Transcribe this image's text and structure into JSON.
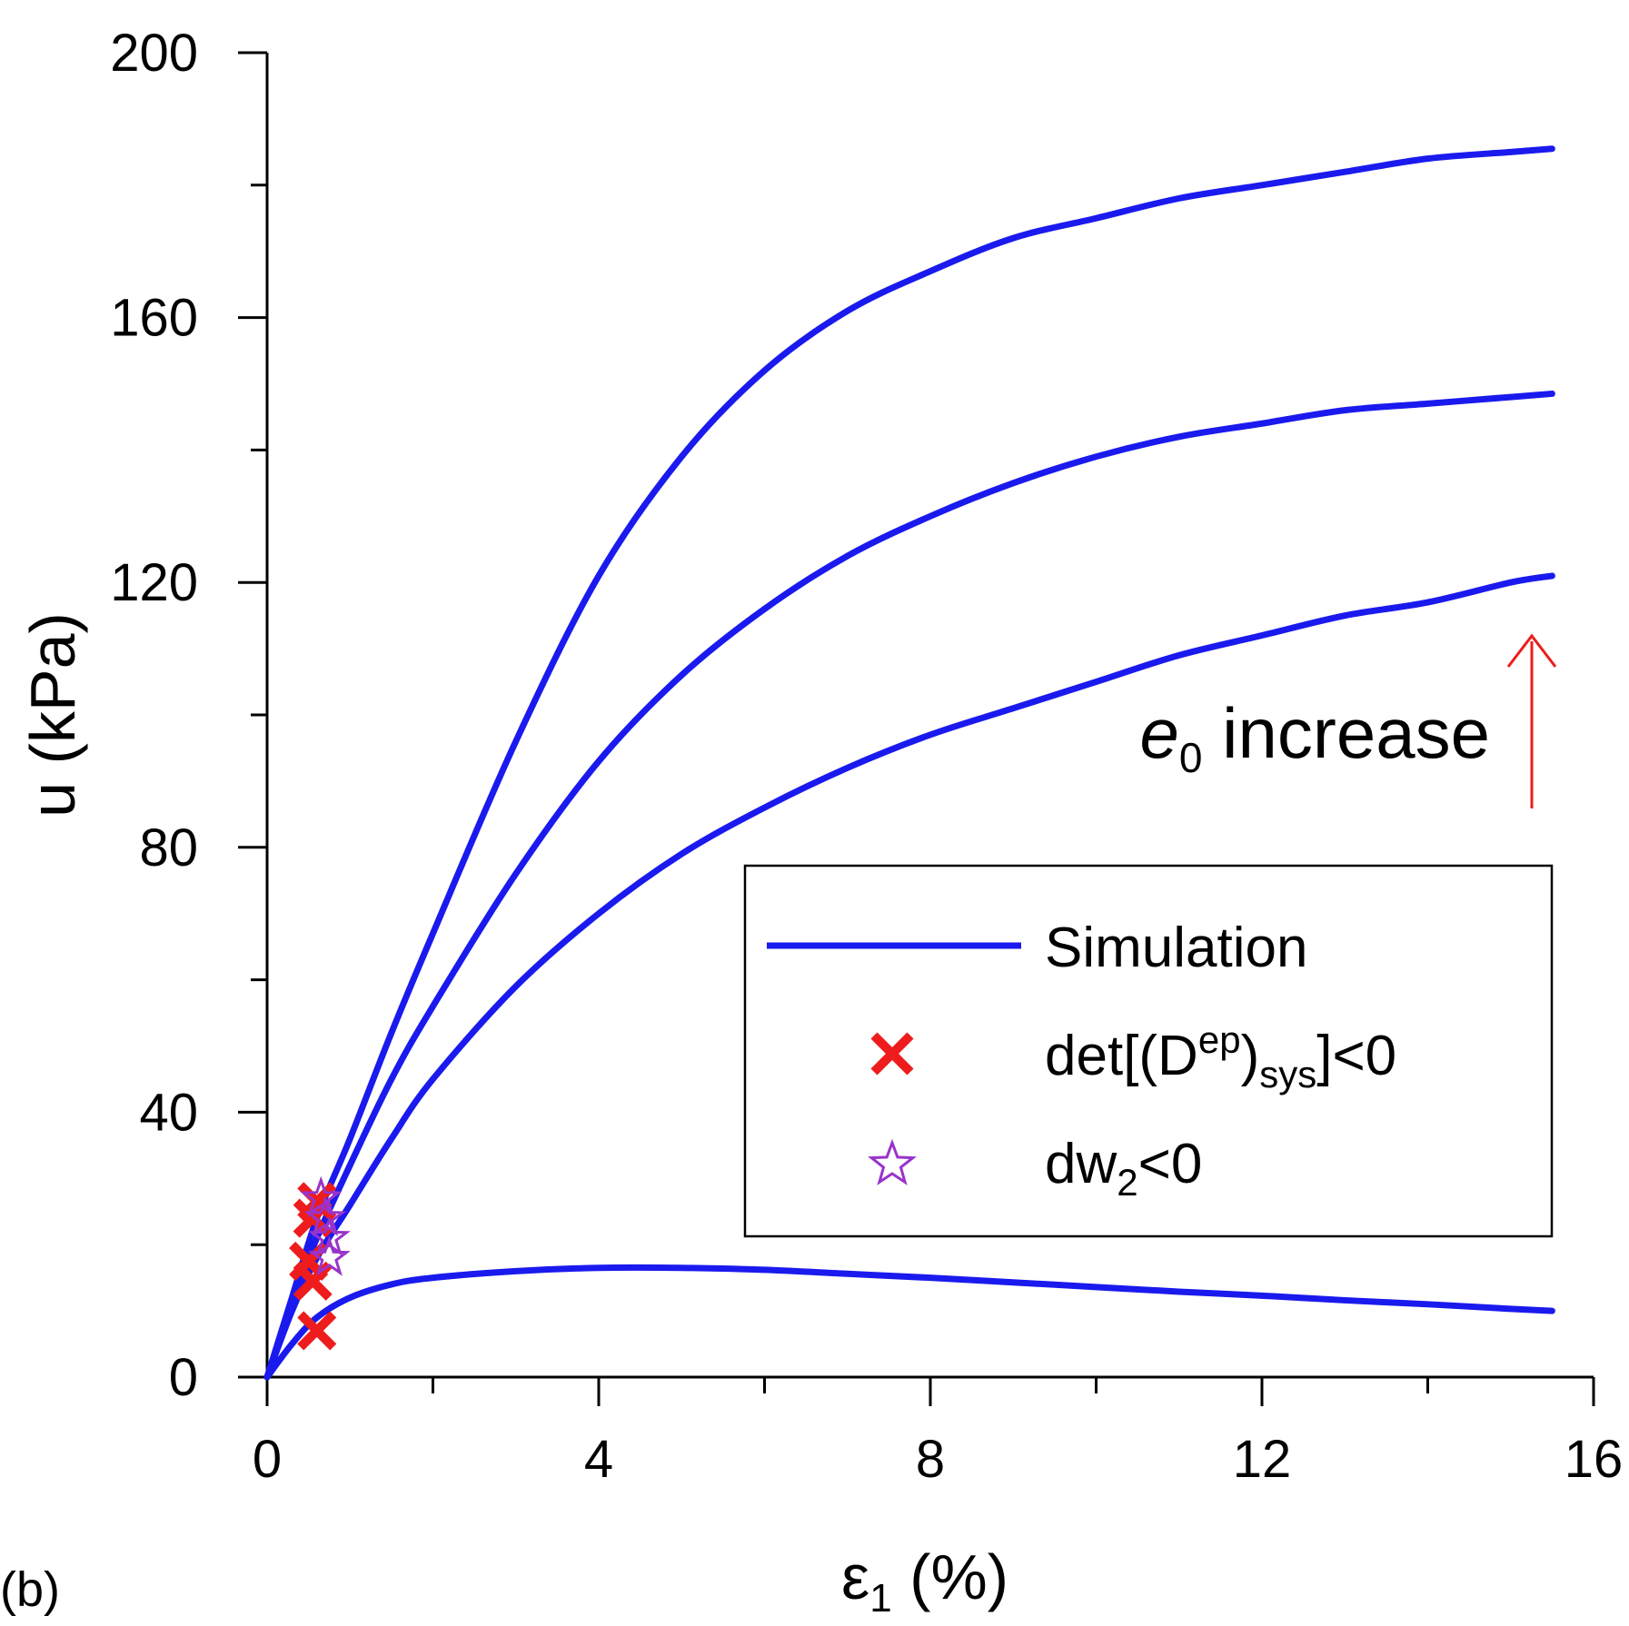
{
  "chart_data": {
    "type": "line",
    "panel_label": "(b)",
    "xlabel": {
      "main": "ε",
      "sub": "1",
      "rest": " (%)"
    },
    "ylabel": "u (kPa)",
    "xlim": [
      0,
      16
    ],
    "ylim": [
      0,
      200
    ],
    "xticks": [
      0,
      4,
      8,
      12,
      16
    ],
    "yticks": [
      0,
      40,
      80,
      120,
      160,
      200
    ],
    "xminor": [
      2,
      6,
      10,
      14
    ],
    "yminor": [
      20,
      60,
      100,
      140,
      180
    ],
    "colors": {
      "line": "#1a1aee",
      "cross": "#ee1c1c",
      "star": "#9933cc",
      "arrow": "#ee1c1c"
    },
    "series": [
      {
        "x": [
          0,
          0.3,
          0.6,
          1,
          1.5,
          2,
          3,
          4,
          5,
          6,
          7,
          8,
          9,
          10,
          11,
          12,
          13,
          14,
          15,
          15.5
        ],
        "y": [
          0,
          10,
          18,
          26,
          36,
          45,
          59,
          70,
          79,
          86,
          92,
          97,
          101,
          105,
          109,
          112,
          115,
          117,
          120,
          121
        ]
      },
      {
        "x": [
          0,
          0.3,
          0.6,
          1,
          1.5,
          2,
          3,
          4,
          5,
          6,
          7,
          8,
          9,
          10,
          11,
          12,
          13,
          14,
          15,
          15.5
        ],
        "y": [
          0,
          11,
          21,
          32,
          45,
          56,
          76,
          93,
          106,
          116,
          124,
          130,
          135,
          139,
          142,
          144,
          146,
          147,
          148,
          148.5
        ]
      },
      {
        "x": [
          0,
          0.3,
          0.6,
          1,
          1.5,
          2,
          3,
          4,
          5,
          6,
          7,
          8,
          9,
          10,
          11,
          12,
          13,
          14,
          15,
          15.5
        ],
        "y": [
          0,
          12,
          24,
          36,
          52,
          67,
          96,
          121,
          139,
          152,
          161,
          167,
          172,
          175,
          178,
          180,
          182,
          184,
          185,
          185.5
        ]
      },
      {
        "x": [
          0,
          0.3,
          0.6,
          1,
          1.5,
          2,
          3,
          4,
          5,
          6,
          7,
          8,
          9,
          10,
          11,
          12,
          13,
          14,
          15,
          15.5
        ],
        "y": [
          0,
          5,
          9,
          12,
          14,
          15,
          16,
          16.5,
          16.5,
          16.2,
          15.6,
          15,
          14.3,
          13.6,
          12.9,
          12.3,
          11.6,
          11,
          10.3,
          10
        ]
      }
    ],
    "crosses": [
      {
        "x": 0.6,
        "y": 26.5
      },
      {
        "x": 0.55,
        "y": 24
      },
      {
        "x": 0.5,
        "y": 17.5
      },
      {
        "x": 0.55,
        "y": 14.5
      },
      {
        "x": 0.6,
        "y": 7
      }
    ],
    "stars": [
      {
        "x": 0.65,
        "y": 27
      },
      {
        "x": 0.7,
        "y": 24
      },
      {
        "x": 0.75,
        "y": 21
      },
      {
        "x": 0.75,
        "y": 18
      }
    ],
    "legend": {
      "position": "center-right",
      "items": [
        {
          "label": "Simulation",
          "marker": "line"
        },
        {
          "label_main": "det[(D",
          "label_sup": "ep",
          "label_close": ")",
          "label_sub": "sys",
          "label_end": "]<0",
          "marker": "cross"
        },
        {
          "label_main": "dw",
          "label_sub": "2",
          "label_end": "<0",
          "marker": "star"
        }
      ]
    },
    "annotation": {
      "main": "e",
      "sub": "0",
      "rest": " increase",
      "arrow_direction": "up"
    }
  }
}
